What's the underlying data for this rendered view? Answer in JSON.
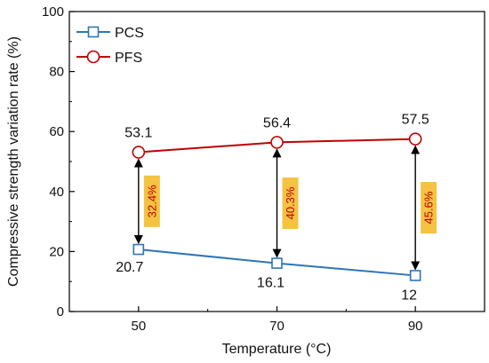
{
  "chart_data": {
    "type": "line",
    "x": [
      50,
      70,
      90
    ],
    "xlabel": "Temperature (°C)",
    "ylabel": "Compressive strength variation rate (%)",
    "xlim": [
      40,
      100
    ],
    "ylim": [
      0,
      100
    ],
    "xticks": [
      "50",
      "70",
      "90"
    ],
    "yticks": [
      "0",
      "20",
      "40",
      "60",
      "80",
      "100"
    ],
    "grid": false,
    "legend_position": "top-left",
    "series": [
      {
        "name": "PCS",
        "values": [
          20.7,
          16.1,
          12
        ],
        "labels": [
          "20.7",
          "16.1",
          "12"
        ],
        "color": "#2e75b6",
        "marker": "square"
      },
      {
        "name": "PFS",
        "values": [
          53.1,
          56.4,
          57.5
        ],
        "labels": [
          "53.1",
          "56.4",
          "57.5"
        ],
        "color": "#c00000",
        "marker": "circle"
      }
    ],
    "annotations": [
      {
        "x": 50,
        "text": "32.4%"
      },
      {
        "x": 70,
        "text": "40.3%"
      },
      {
        "x": 90,
        "text": "45.6%"
      }
    ],
    "annotation_box_color": "#f5c242",
    "annotation_text_color": "#c00000"
  }
}
